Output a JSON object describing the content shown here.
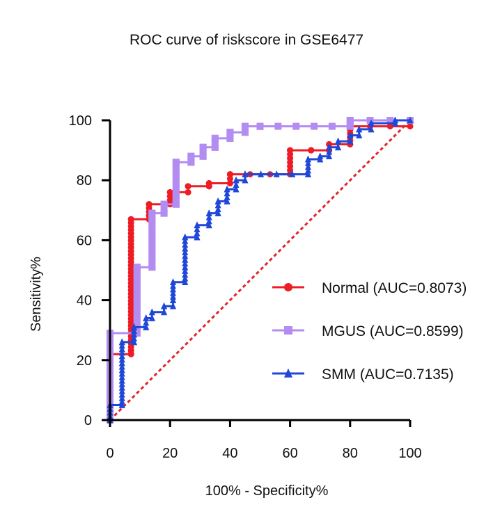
{
  "chart_data": {
    "type": "line",
    "title": "ROC curve of riskscore in GSE6477",
    "xlabel": "100% - Specificity%",
    "ylabel": "Sensitivity%",
    "xlim": [
      0,
      100
    ],
    "ylim": [
      0,
      100
    ],
    "xticks": [
      0,
      20,
      40,
      60,
      80,
      100
    ],
    "yticks": [
      0,
      20,
      40,
      60,
      80,
      100
    ],
    "grid": false,
    "legend_position": "right",
    "reference_line": {
      "from": [
        0,
        0
      ],
      "to": [
        100,
        100
      ],
      "style": "dashed",
      "color": "#e0262d"
    },
    "series": [
      {
        "name": "Normal (AUC=0.8073)",
        "color": "#ee1c25",
        "marker": "circle",
        "points": [
          [
            0,
            0
          ],
          [
            0,
            22
          ],
          [
            7,
            22
          ],
          [
            7,
            67
          ],
          [
            13,
            67
          ],
          [
            13,
            72
          ],
          [
            20,
            72
          ],
          [
            20,
            76
          ],
          [
            26,
            76
          ],
          [
            26,
            78
          ],
          [
            33,
            78
          ],
          [
            33,
            79
          ],
          [
            40,
            79
          ],
          [
            40,
            82
          ],
          [
            60,
            82
          ],
          [
            60,
            90
          ],
          [
            67,
            90
          ],
          [
            67,
            90
          ],
          [
            73,
            90
          ],
          [
            73,
            92
          ],
          [
            80,
            92
          ],
          [
            80,
            98
          ],
          [
            100,
            98
          ]
        ]
      },
      {
        "name": "MGUS (AUC=0.8599)",
        "color": "#b28cf0",
        "marker": "square",
        "points": [
          [
            0,
            0
          ],
          [
            0,
            29
          ],
          [
            9,
            29
          ],
          [
            9,
            51
          ],
          [
            14,
            51
          ],
          [
            14,
            69
          ],
          [
            18,
            69
          ],
          [
            18,
            72
          ],
          [
            22,
            72
          ],
          [
            22,
            86
          ],
          [
            27,
            86
          ],
          [
            27,
            88
          ],
          [
            31,
            88
          ],
          [
            31,
            91
          ],
          [
            35,
            91
          ],
          [
            35,
            94
          ],
          [
            40,
            94
          ],
          [
            40,
            96
          ],
          [
            45,
            96
          ],
          [
            45,
            98
          ],
          [
            50,
            98
          ],
          [
            50,
            98
          ],
          [
            80,
            98
          ],
          [
            80,
            100
          ],
          [
            100,
            100
          ]
        ]
      },
      {
        "name": "SMM (AUC=0.7135)",
        "color": "#1f47d8",
        "marker": "triangle",
        "points": [
          [
            0,
            0
          ],
          [
            0,
            5
          ],
          [
            4,
            5
          ],
          [
            4,
            26
          ],
          [
            8,
            26
          ],
          [
            8,
            31
          ],
          [
            12,
            31
          ],
          [
            12,
            34
          ],
          [
            14,
            34
          ],
          [
            14,
            36
          ],
          [
            18,
            36
          ],
          [
            18,
            38
          ],
          [
            21,
            38
          ],
          [
            21,
            40
          ],
          [
            21,
            40
          ],
          [
            21,
            46
          ],
          [
            25,
            46
          ],
          [
            25,
            61
          ],
          [
            29,
            61
          ],
          [
            29,
            65
          ],
          [
            33,
            65
          ],
          [
            33,
            69
          ],
          [
            36,
            69
          ],
          [
            36,
            73
          ],
          [
            39,
            73
          ],
          [
            39,
            77
          ],
          [
            42,
            77
          ],
          [
            42,
            80
          ],
          [
            45,
            80
          ],
          [
            45,
            82
          ],
          [
            66,
            82
          ],
          [
            66,
            87
          ],
          [
            70,
            87
          ],
          [
            70,
            88
          ],
          [
            73,
            88
          ],
          [
            73,
            91
          ],
          [
            76,
            91
          ],
          [
            76,
            93
          ],
          [
            80,
            93
          ],
          [
            80,
            95
          ],
          [
            83,
            95
          ],
          [
            83,
            97
          ],
          [
            87,
            97
          ],
          [
            87,
            99
          ],
          [
            95,
            99
          ],
          [
            95,
            100
          ],
          [
            100,
            100
          ]
        ]
      }
    ]
  }
}
